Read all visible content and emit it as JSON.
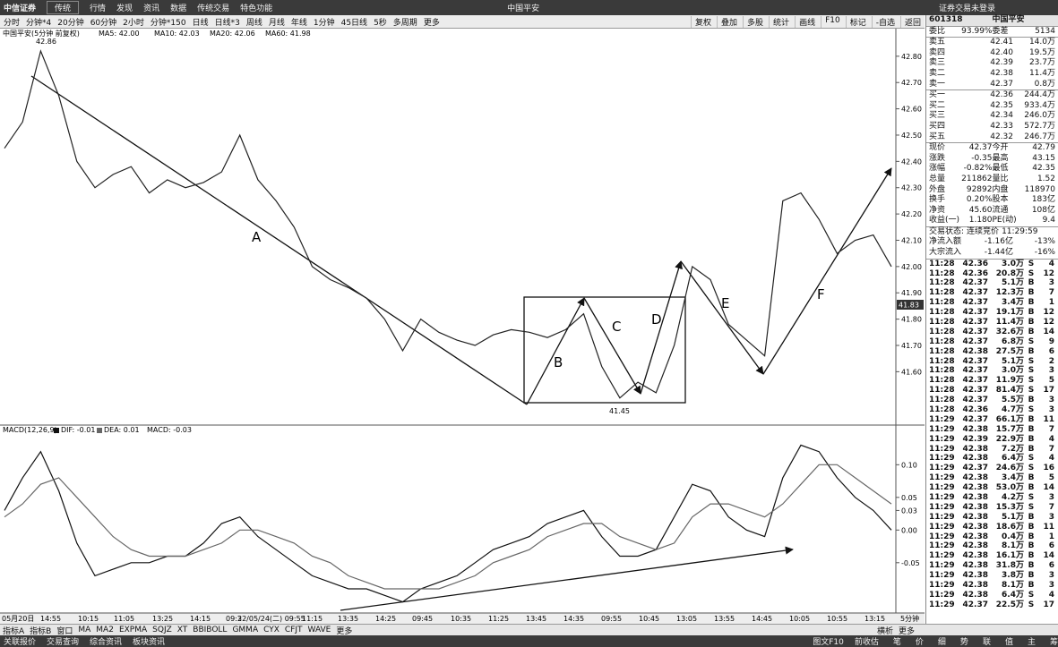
{
  "window": {
    "logo": "中信证券",
    "mode": "传统",
    "menu": [
      "行情",
      "发现",
      "资讯",
      "数据",
      "传统交易",
      "特色功能"
    ],
    "title": "中国平安",
    "login": "证券交易未登录"
  },
  "periods": [
    "分时",
    "分钟*4",
    "20分钟",
    "60分钟",
    "2小时",
    "分钟*150",
    "日线",
    "日线*3",
    "周线",
    "月线",
    "年线",
    "1分钟",
    "45日线",
    "5秒",
    "多周期",
    "更多"
  ],
  "tools": [
    "复权",
    "叠加",
    "多股",
    "统计",
    "画线",
    "F10",
    "标记",
    "-自选",
    "返回"
  ],
  "chart_data": [
    {
      "type": "line",
      "title": "中国平安(5分钟 前复权)",
      "legend": [
        "MA5: 42.00",
        "MA10: 42.03",
        "MA20: 42.06",
        "MA60: 41.98"
      ],
      "color": "#222222",
      "values": [
        42.45,
        42.55,
        42.82,
        42.65,
        42.4,
        42.3,
        42.35,
        42.38,
        42.28,
        42.33,
        42.3,
        42.32,
        42.36,
        42.5,
        42.33,
        42.25,
        42.15,
        42.0,
        41.95,
        41.92,
        41.88,
        41.8,
        41.68,
        41.8,
        41.75,
        41.72,
        41.7,
        41.74,
        41.76,
        41.75,
        41.73,
        41.76,
        41.82,
        41.62,
        41.5,
        41.56,
        41.52,
        41.7,
        42.0,
        41.95,
        41.78,
        41.72,
        41.66,
        42.25,
        42.28,
        42.18,
        42.05,
        42.1,
        42.12,
        42.0
      ],
      "ylim": [
        41.397,
        42.905
      ],
      "yticks": [
        {
          "value": 41.6,
          "label": "41.60"
        },
        {
          "value": 41.7,
          "label": "41.70"
        },
        {
          "value": 41.8,
          "label": "41.80"
        },
        {
          "value": 41.9,
          "label": "41.90"
        },
        {
          "value": 42.0,
          "label": "42.00"
        },
        {
          "value": 42.1,
          "label": "42.10"
        },
        {
          "value": 42.2,
          "label": "42.20"
        },
        {
          "value": 42.3,
          "label": "42.30"
        },
        {
          "value": 42.4,
          "label": "42.40"
        },
        {
          "value": 42.5,
          "label": "42.50"
        },
        {
          "value": 42.6,
          "label": "42.60"
        },
        {
          "value": 42.7,
          "label": "42.70"
        },
        {
          "value": 42.8,
          "label": "42.80"
        }
      ],
      "time_labels": [
        "05月20日",
        "14:55",
        "10:15",
        "11:05",
        "13:25",
        "14:15",
        "09:3",
        "22/05/24(二) 09:55",
        "11:15",
        "13:35",
        "14:25",
        "09:45",
        "10:35",
        "11:25",
        "13:45",
        "14:35",
        "09:55",
        "10:45",
        "13:05",
        "13:55",
        "14:45",
        "10:05",
        "10:55",
        "13:15"
      ],
      "period": "5分钟",
      "annotations": {
        "high": "42.86",
        "low": "41.45",
        "last": "41.83",
        "waves": [
          "A",
          "B",
          "C",
          "D",
          "E",
          "F"
        ]
      }
    },
    {
      "type": "line",
      "title": "MACD(12,26,9)",
      "legend": [
        "DIF: -0.01",
        "DEA: 0.01",
        "MACD: -0.03"
      ],
      "series": [
        {
          "name": "DIF: -0.01",
          "color": "#111111",
          "values": [
            0.03,
            0.08,
            0.12,
            0.06,
            -0.02,
            -0.07,
            -0.06,
            -0.05,
            -0.05,
            -0.04,
            -0.04,
            -0.02,
            0.01,
            0.02,
            -0.01,
            -0.03,
            -0.05,
            -0.07,
            -0.08,
            -0.09,
            -0.09,
            -0.1,
            -0.11,
            -0.09,
            -0.08,
            -0.07,
            -0.05,
            -0.03,
            -0.02,
            -0.01,
            0.01,
            0.02,
            0.03,
            -0.01,
            -0.04,
            -0.04,
            -0.03,
            0.02,
            0.07,
            0.06,
            0.02,
            0.0,
            -0.01,
            0.08,
            0.13,
            0.12,
            0.08,
            0.05,
            0.03,
            0.0
          ]
        },
        {
          "name": "DEA: 0.01",
          "color": "#666666",
          "values": [
            0.02,
            0.04,
            0.07,
            0.08,
            0.05,
            0.02,
            -0.01,
            -0.03,
            -0.04,
            -0.04,
            -0.04,
            -0.03,
            -0.02,
            0.0,
            0.0,
            -0.01,
            -0.02,
            -0.04,
            -0.05,
            -0.07,
            -0.08,
            -0.09,
            -0.09,
            -0.09,
            -0.09,
            -0.08,
            -0.07,
            -0.05,
            -0.04,
            -0.03,
            -0.01,
            0.0,
            0.01,
            0.01,
            -0.01,
            -0.02,
            -0.03,
            -0.02,
            0.02,
            0.04,
            0.04,
            0.03,
            0.02,
            0.04,
            0.07,
            0.1,
            0.1,
            0.08,
            0.06,
            0.04
          ]
        }
      ],
      "ylim": [
        -0.127,
        0.158
      ],
      "yticks": [
        {
          "value": -0.05,
          "label": "-0.05"
        },
        {
          "value": 0,
          "label": "0.00"
        },
        {
          "value": 0.03,
          "label": "0.03"
        },
        {
          "value": 0.05,
          "label": "0.05"
        },
        {
          "value": 0.1,
          "label": "0.10"
        }
      ]
    }
  ],
  "quote": {
    "code": "601318",
    "name": "中国平安",
    "ratio": [
      "委比",
      "93.99%",
      "委差",
      "5134"
    ],
    "asks": [
      [
        "卖五",
        "42.41",
        "14.0万"
      ],
      [
        "卖四",
        "42.40",
        "19.5万"
      ],
      [
        "卖三",
        "42.39",
        "23.7万"
      ],
      [
        "卖二",
        "42.38",
        "11.4万"
      ],
      [
        "卖一",
        "42.37",
        "0.8万"
      ]
    ],
    "bids": [
      [
        "买一",
        "42.36",
        "244.4万"
      ],
      [
        "买二",
        "42.35",
        "933.4万"
      ],
      [
        "买三",
        "42.34",
        "246.0万"
      ],
      [
        "买四",
        "42.33",
        "572.7万"
      ],
      [
        "买五",
        "42.32",
        "246.7万"
      ]
    ],
    "stats": [
      [
        "现价",
        "42.37",
        "今开",
        "42.79"
      ],
      [
        "涨跌",
        "-0.35",
        "最高",
        "43.15"
      ],
      [
        "涨幅",
        "-0.82%",
        "最低",
        "42.35"
      ],
      [
        "总量",
        "211862",
        "量比",
        "1.52"
      ],
      [
        "外盘",
        "92892",
        "内盘",
        "118970"
      ],
      [
        "换手",
        "0.20%",
        "股本",
        "183亿"
      ],
      [
        "净资",
        "45.60",
        "流通",
        "108亿"
      ],
      [
        "收益(一)",
        "1.180",
        "PE(动)",
        "9.4"
      ]
    ],
    "status": [
      "交易状态:",
      "连续竞价",
      "11:29:59"
    ],
    "flows": [
      [
        "净流入额",
        "-1.16亿",
        "-13%"
      ],
      [
        "大宗流入",
        "-1.44亿",
        "-16%"
      ]
    ],
    "trades": [
      [
        "11:28",
        "42.36",
        "3.0万",
        "S",
        "4"
      ],
      [
        "11:28",
        "42.36",
        "20.8万",
        "S",
        "12"
      ],
      [
        "11:28",
        "42.37",
        "5.1万",
        "B",
        "3"
      ],
      [
        "11:28",
        "42.37",
        "12.3万",
        "B",
        "7"
      ],
      [
        "11:28",
        "42.37",
        "3.4万",
        "B",
        "1"
      ],
      [
        "11:28",
        "42.37",
        "19.1万",
        "B",
        "12"
      ],
      [
        "11:28",
        "42.37",
        "11.4万",
        "B",
        "12"
      ],
      [
        "11:28",
        "42.37",
        "32.6万",
        "B",
        "14"
      ],
      [
        "11:28",
        "42.37",
        "6.8万",
        "S",
        "9"
      ],
      [
        "11:28",
        "42.38",
        "27.5万",
        "B",
        "6"
      ],
      [
        "11:28",
        "42.37",
        "5.1万",
        "S",
        "2"
      ],
      [
        "11:28",
        "42.37",
        "3.0万",
        "S",
        "3"
      ],
      [
        "11:28",
        "42.37",
        "11.9万",
        "S",
        "5"
      ],
      [
        "11:28",
        "42.37",
        "81.4万",
        "S",
        "17"
      ],
      [
        "11:28",
        "42.37",
        "5.5万",
        "B",
        "3"
      ],
      [
        "11:28",
        "42.36",
        "4.7万",
        "S",
        "3"
      ],
      [
        "11:29",
        "42.37",
        "66.1万",
        "B",
        "11"
      ],
      [
        "11:29",
        "42.38",
        "15.7万",
        "B",
        "7"
      ],
      [
        "11:29",
        "42.39",
        "22.9万",
        "B",
        "4"
      ],
      [
        "11:29",
        "42.38",
        "7.2万",
        "B",
        "7"
      ],
      [
        "11:29",
        "42.38",
        "6.4万",
        "S",
        "4"
      ],
      [
        "11:29",
        "42.37",
        "24.6万",
        "S",
        "16"
      ],
      [
        "11:29",
        "42.38",
        "3.4万",
        "B",
        "5"
      ],
      [
        "11:29",
        "42.38",
        "53.0万",
        "B",
        "14"
      ],
      [
        "11:29",
        "42.38",
        "4.2万",
        "S",
        "3"
      ],
      [
        "11:29",
        "42.38",
        "15.3万",
        "S",
        "7"
      ],
      [
        "11:29",
        "42.38",
        "5.1万",
        "B",
        "3"
      ],
      [
        "11:29",
        "42.38",
        "18.6万",
        "B",
        "11"
      ],
      [
        "11:29",
        "42.38",
        "0.4万",
        "B",
        "1"
      ],
      [
        "11:29",
        "42.38",
        "8.1万",
        "B",
        "6"
      ],
      [
        "11:29",
        "42.38",
        "16.1万",
        "B",
        "14"
      ],
      [
        "11:29",
        "42.38",
        "31.8万",
        "B",
        "6"
      ],
      [
        "11:29",
        "42.38",
        "3.8万",
        "B",
        "3"
      ],
      [
        "11:29",
        "42.38",
        "8.1万",
        "B",
        "3"
      ],
      [
        "11:29",
        "42.38",
        "6.4万",
        "S",
        "4"
      ],
      [
        "11:29",
        "42.37",
        "22.5万",
        "S",
        "17"
      ]
    ]
  },
  "indicators": [
    "指标A",
    "指标B",
    "窗口",
    "MA",
    "MA2",
    "EXPMA",
    "SQJZ",
    "XT",
    "BBIBOLL",
    "GMMA",
    "CYX",
    "CFJT",
    "WAVE",
    "更多"
  ],
  "indicator_right": [
    "横析",
    "更多"
  ],
  "status_tabs": [
    "关联报价",
    "交易查询",
    "综合资讯",
    "板块资讯"
  ],
  "status_right": [
    "图文F10",
    "前收估"
  ],
  "panel_tabs": [
    "笔",
    "价",
    "细",
    "势",
    "联",
    "值",
    "主",
    "筹"
  ]
}
